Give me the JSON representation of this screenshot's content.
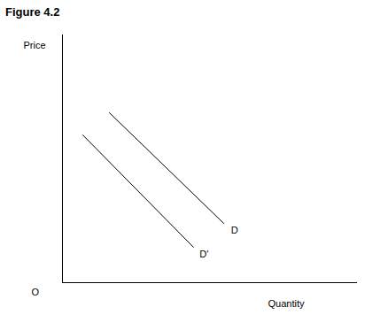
{
  "chart_data": {
    "type": "line",
    "title": "Figure 4.2",
    "x_label": "Quantity",
    "y_label": "Price",
    "annotations": [
      "O"
    ],
    "series": [
      {
        "name": "D",
        "color": "#000000",
        "x": [
          15.9,
          54.7
        ],
        "values": [
          68.6,
          23.9
        ]
      },
      {
        "name": "D'",
        "color": "#000000",
        "x": [
          6.9,
          44.4
        ],
        "values": [
          59.6,
          14.3
        ]
      }
    ],
    "xlim": [
      0,
      100
    ],
    "ylim": [
      0,
      100
    ],
    "tick_labels": false,
    "grid": false
  }
}
